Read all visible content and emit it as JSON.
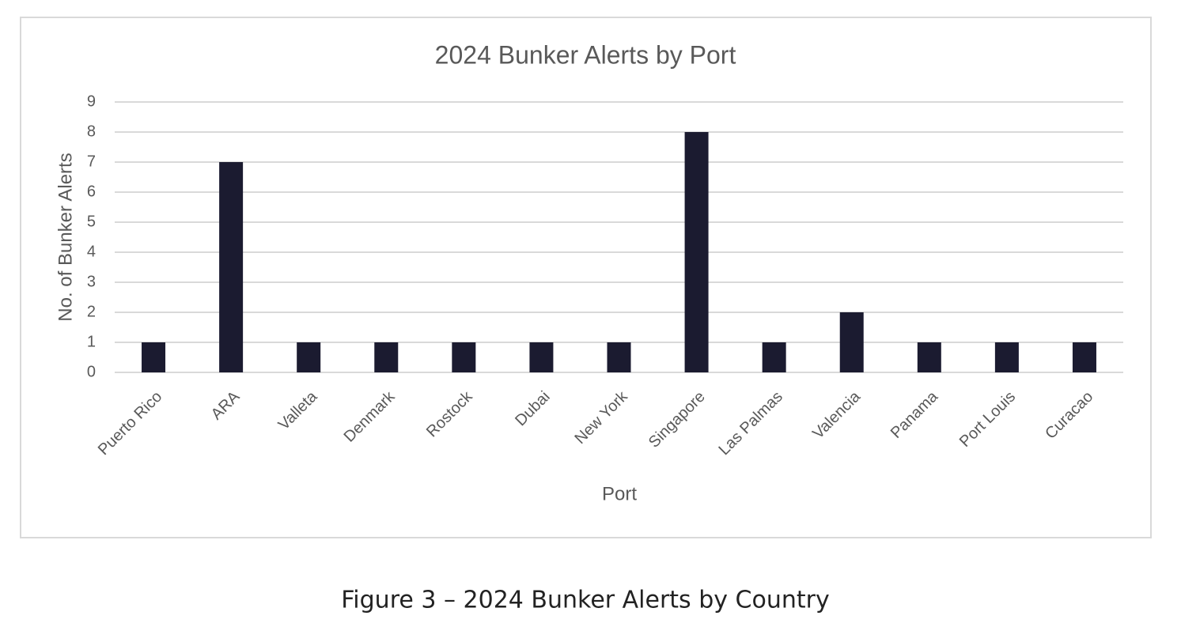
{
  "chart_data": {
    "type": "bar",
    "title": "2024 Bunker Alerts by Port",
    "x_label": "Port",
    "y_label": "No. of Bunker Alerts",
    "categories": [
      "Puerto Rico",
      "ARA",
      "Valleta",
      "Denmark",
      "Rostock",
      "Dubai",
      "New York",
      "Singapore",
      "Las Palmas",
      "Valencia",
      "Panama",
      "Port Louis",
      "Curacao"
    ],
    "values": [
      1,
      7,
      1,
      1,
      1,
      1,
      1,
      8,
      1,
      2,
      1,
      1,
      1
    ],
    "color": "#1b1b30",
    "ylim": [
      0,
      9
    ],
    "yticks": [
      0,
      1,
      2,
      3,
      4,
      5,
      6,
      7,
      8,
      9
    ],
    "grid": true
  },
  "caption": "Figure 3 – 2024 Bunker Alerts by Country"
}
